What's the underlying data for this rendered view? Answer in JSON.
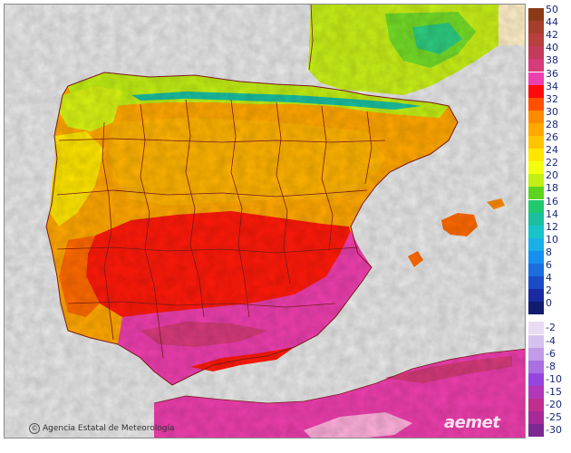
{
  "map": {
    "credit": "Agencia Estatal de Meteorología",
    "watermark": "aemet",
    "colors": {
      "sea": "#e8e8e8",
      "border": "#7a1a1a",
      "frame": "#8a8a8a"
    }
  },
  "legend": {
    "warm": [
      {
        "label": "50",
        "color": "#8a3a14"
      },
      {
        "label": "44",
        "color": "#a53f2a"
      },
      {
        "label": "42",
        "color": "#b8403d"
      },
      {
        "label": "40",
        "color": "#c43a5a"
      },
      {
        "label": "38",
        "color": "#d63b7a"
      },
      {
        "label": "36",
        "color": "#ee3fae"
      },
      {
        "label": "34",
        "color": "#ff0a0a"
      },
      {
        "label": "32",
        "color": "#ff5000"
      },
      {
        "label": "30",
        "color": "#ff8a00"
      },
      {
        "label": "28",
        "color": "#ffa800"
      },
      {
        "label": "26",
        "color": "#ffc400"
      },
      {
        "label": "24",
        "color": "#ffe600"
      },
      {
        "label": "22",
        "color": "#f4ff10"
      },
      {
        "label": "20",
        "color": "#c2ef14"
      },
      {
        "label": "18",
        "color": "#5ed41f"
      },
      {
        "label": "16",
        "color": "#20c86e"
      },
      {
        "label": "14",
        "color": "#1abfa0"
      },
      {
        "label": "12",
        "color": "#19c4c8"
      },
      {
        "label": "10",
        "color": "#18b0e6"
      },
      {
        "label": "8",
        "color": "#1690f0"
      },
      {
        "label": "6",
        "color": "#1a6ee0"
      },
      {
        "label": "4",
        "color": "#1a4cc8"
      },
      {
        "label": "2",
        "color": "#1a2aa0"
      },
      {
        "label": "0",
        "color": "#121c6e"
      }
    ],
    "cold": [
      {
        "label": "-2",
        "color": "#e8dcf2"
      },
      {
        "label": "-4",
        "color": "#d6c2ee"
      },
      {
        "label": "-6",
        "color": "#c29ce8"
      },
      {
        "label": "-8",
        "color": "#aa70e2"
      },
      {
        "label": "-10",
        "color": "#9646de"
      },
      {
        "label": "-15",
        "color": "#b038b8"
      },
      {
        "label": "-20",
        "color": "#c02e90"
      },
      {
        "label": "-25",
        "color": "#a62a98"
      },
      {
        "label": "-30",
        "color": "#7a2a90"
      }
    ]
  }
}
